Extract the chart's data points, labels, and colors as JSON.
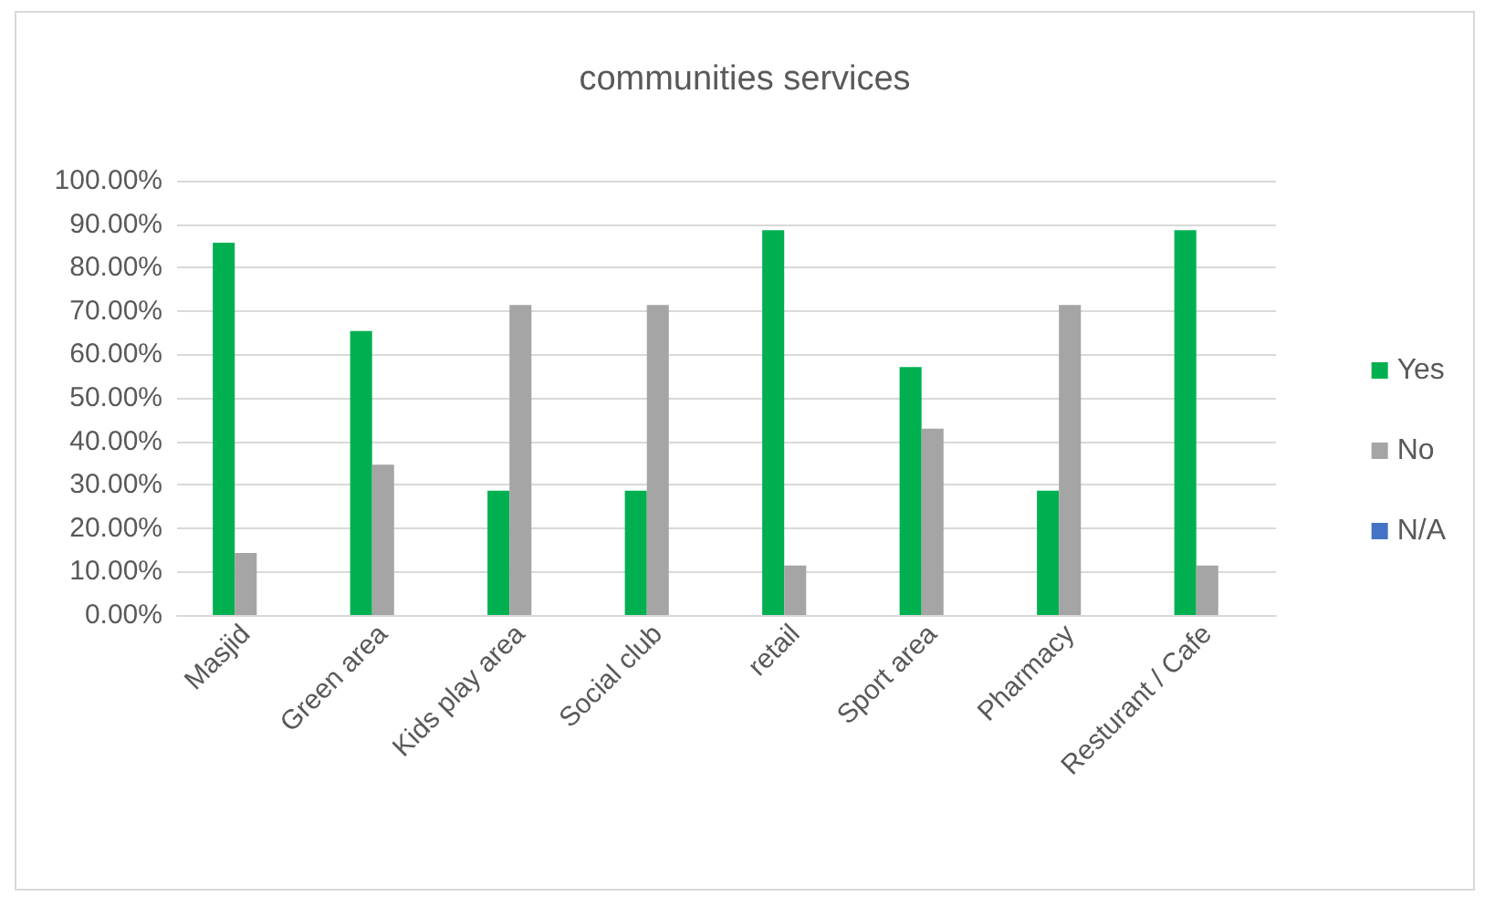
{
  "chart_data": {
    "type": "bar",
    "title": "communities services",
    "categories": [
      "Masjid",
      "Green area",
      "Kids play area",
      "Social club",
      "retail",
      "Sport area",
      "Pharmacy",
      "Resturant / Cafe"
    ],
    "series": [
      {
        "name": "Yes",
        "color": "#00b050",
        "values": [
          85.7,
          65.4,
          28.6,
          28.6,
          88.6,
          57.1,
          28.6,
          88.6
        ]
      },
      {
        "name": "No",
        "color": "#a5a5a5",
        "values": [
          14.3,
          34.6,
          71.4,
          71.4,
          11.4,
          42.9,
          71.4,
          11.4
        ]
      },
      {
        "name": "N/A",
        "color": "#4472c4",
        "values": [
          0,
          0,
          0,
          0,
          0,
          0,
          0,
          0
        ]
      }
    ],
    "ylim": [
      0,
      100
    ],
    "yticks": [
      {
        "value": 0,
        "label": "0.00%"
      },
      {
        "value": 10,
        "label": "10.00%"
      },
      {
        "value": 20,
        "label": "20.00%"
      },
      {
        "value": 30,
        "label": "30.00%"
      },
      {
        "value": 40,
        "label": "40.00%"
      },
      {
        "value": 50,
        "label": "50.00%"
      },
      {
        "value": 60,
        "label": "60.00%"
      },
      {
        "value": 70,
        "label": "70.00%"
      },
      {
        "value": 80,
        "label": "80.00%"
      },
      {
        "value": 90,
        "label": "90.00%"
      },
      {
        "value": 100,
        "label": "100.00%"
      }
    ],
    "grid": "y",
    "legend": "right"
  }
}
